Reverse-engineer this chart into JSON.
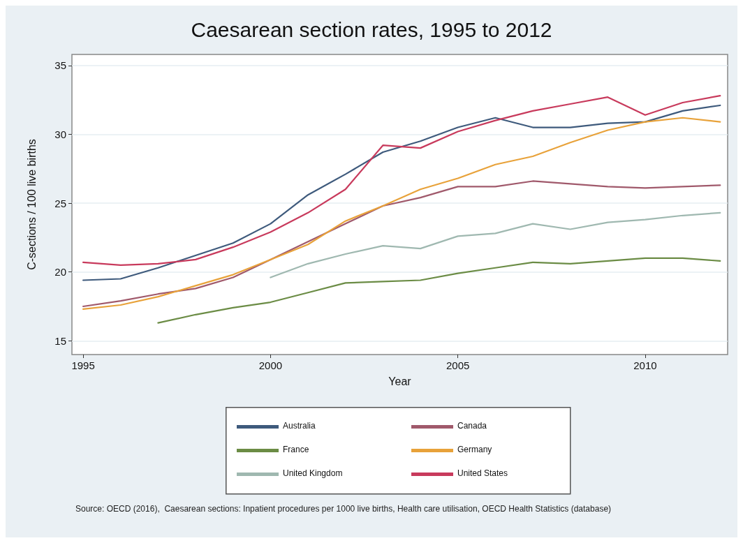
{
  "chart_data": {
    "type": "line",
    "title": "Caesarean section rates, 1995 to 2012",
    "xlabel": "Year",
    "ylabel": "C-sections / 100 live births",
    "x": [
      1995,
      1996,
      1997,
      1998,
      1999,
      2000,
      2001,
      2002,
      2003,
      2004,
      2005,
      2006,
      2007,
      2008,
      2009,
      2010,
      2011,
      2012
    ],
    "series": [
      {
        "name": "Australia",
        "color": "#3e5a7c",
        "values": [
          19.4,
          19.5,
          20.3,
          21.2,
          22.1,
          23.5,
          25.6,
          27.1,
          28.7,
          29.5,
          30.5,
          31.2,
          30.5,
          30.5,
          30.8,
          30.9,
          31.7,
          32.1
        ]
      },
      {
        "name": "Canada",
        "color": "#a0596b",
        "values": [
          17.5,
          17.9,
          18.4,
          18.8,
          19.6,
          20.9,
          22.2,
          23.5,
          24.8,
          25.4,
          26.2,
          26.2,
          26.6,
          26.4,
          26.2,
          26.1,
          26.2,
          26.3
        ]
      },
      {
        "name": "France",
        "color": "#6b8c45",
        "values": [
          null,
          null,
          16.3,
          16.9,
          17.4,
          17.8,
          18.5,
          19.2,
          19.3,
          19.4,
          19.9,
          20.3,
          20.7,
          20.6,
          20.8,
          21.0,
          21.0,
          20.8
        ]
      },
      {
        "name": "Germany",
        "color": "#e8a23a",
        "values": [
          17.3,
          17.6,
          18.2,
          19.0,
          19.8,
          20.9,
          22.0,
          23.7,
          24.8,
          26.0,
          26.8,
          27.8,
          28.4,
          29.4,
          30.3,
          30.9,
          31.2,
          30.9
        ]
      },
      {
        "name": "United Kingdom",
        "color": "#9fb8b0",
        "values": [
          null,
          null,
          null,
          null,
          null,
          19.6,
          20.6,
          21.3,
          21.9,
          21.7,
          22.6,
          22.8,
          23.5,
          23.1,
          23.6,
          23.8,
          24.1,
          24.3
        ]
      },
      {
        "name": "United States",
        "color": "#c83a5c",
        "values": [
          20.7,
          20.5,
          20.6,
          20.9,
          21.8,
          22.9,
          24.3,
          26.0,
          29.2,
          29.0,
          30.2,
          31.0,
          31.7,
          32.2,
          32.7,
          31.4,
          32.3,
          32.8
        ]
      }
    ],
    "xlim": [
      1994.7,
      2012.2
    ],
    "xticks": [
      1995,
      2000,
      2005,
      2010
    ],
    "ylim": [
      14,
      35.8
    ],
    "yticks": [
      15,
      20,
      25,
      30,
      35
    ],
    "grid": "y",
    "legend": "bottom",
    "marker": "none",
    "line_style": "solid",
    "annotations": [
      "Source: OECD (2016),  Caesarean sections: Inpatient procedures per 1000 live births, Health care utilisation, OECD Health Statistics (database)"
    ]
  }
}
